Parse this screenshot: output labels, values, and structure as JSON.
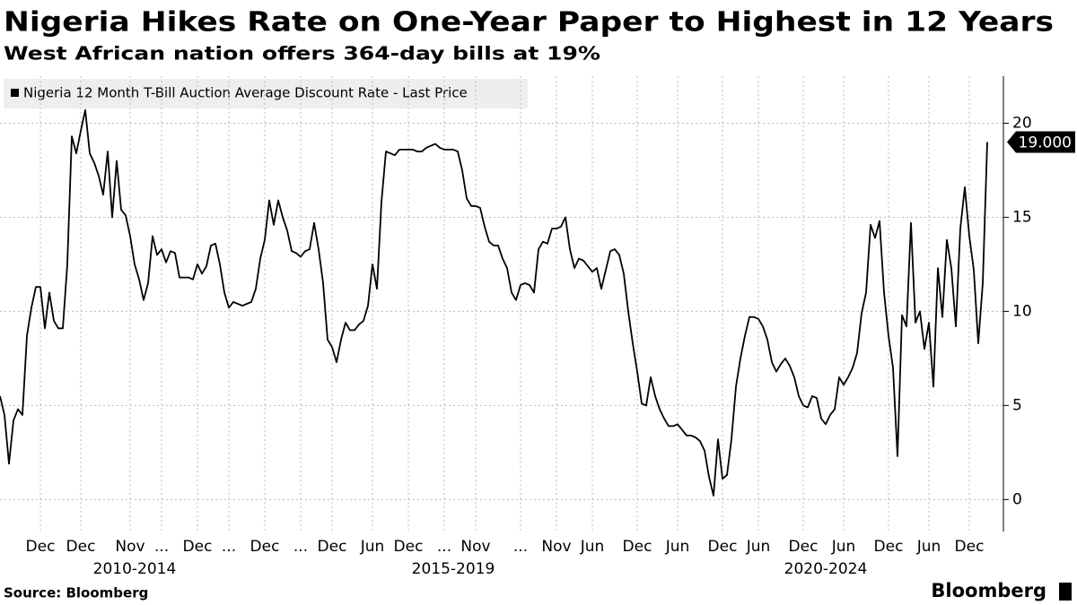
{
  "chart_data": {
    "type": "line",
    "title": "Nigeria Hikes Rate on One-Year Paper to Highest in 12 Years",
    "subtitle": "West African nation offers 364-day bills at 19%",
    "source": "Source: Bloomberg",
    "brand": "Bloomberg",
    "series": [
      {
        "name": "Nigeria 12 Month T-Bill Auction Average Discount Rate - Last Price",
        "color": "#000000",
        "values": [
          5.5,
          4.5,
          1.9,
          4.2,
          4.8,
          4.5,
          8.7,
          10.2,
          11.3,
          11.3,
          9.1,
          11,
          9.5,
          9.1,
          9.1,
          12.5,
          19.3,
          18.4,
          19.6,
          20.7,
          18.4,
          17.9,
          17.2,
          16.2,
          18.5,
          15,
          18,
          15.4,
          15.1,
          14,
          12.5,
          11.7,
          10.6,
          11.5,
          14,
          13,
          13.3,
          12.6,
          13.2,
          13.1,
          11.8,
          11.8,
          11.8,
          11.7,
          12.5,
          12,
          12.4,
          13.5,
          13.6,
          12.5,
          11,
          10.2,
          10.5,
          10.4,
          10.3,
          10.4,
          10.5,
          11.2,
          12.8,
          13.8,
          15.9,
          14.6,
          15.9,
          15,
          14.3,
          13.2,
          13.1,
          12.9,
          13.2,
          13.3,
          14.7,
          13.3,
          11.5,
          8.5,
          8.1,
          7.3,
          8.5,
          9.4,
          9,
          9,
          9.3,
          9.5,
          10.3,
          12.5,
          11.2,
          15.8,
          18.5,
          18.4,
          18.3,
          18.6,
          18.6,
          18.6,
          18.6,
          18.5,
          18.5,
          18.7,
          18.8,
          18.9,
          18.7,
          18.6,
          18.6,
          18.6,
          18.5,
          17.5,
          16,
          15.6,
          15.6,
          15.5,
          14.5,
          13.7,
          13.5,
          13.5,
          12.8,
          12.3,
          11,
          10.6,
          11.4,
          11.5,
          11.4,
          11,
          13.3,
          13.7,
          13.6,
          14.4,
          14.4,
          14.5,
          15,
          13.3,
          12.3,
          12.8,
          12.7,
          12.4,
          12.1,
          12.3,
          11.2,
          12.2,
          13.2,
          13.3,
          13,
          12,
          10,
          8.3,
          6.8,
          5.1,
          5,
          6.5,
          5.5,
          4.8,
          4.3,
          3.9,
          3.9,
          4,
          3.7,
          3.4,
          3.4,
          3.3,
          3.1,
          2.6,
          1.2,
          0.2,
          3.2,
          1.1,
          1.3,
          3.2,
          6,
          7.5,
          8.7,
          9.7,
          9.7,
          9.6,
          9.2,
          8.5,
          7.3,
          6.8,
          7.2,
          7.5,
          7.1,
          6.5,
          5.5,
          5,
          4.9,
          5.5,
          5.4,
          4.3,
          4,
          4.5,
          4.8,
          6.5,
          6.1,
          6.5,
          7,
          7.8,
          9.9,
          11,
          14.6,
          13.9,
          14.8,
          11,
          8.7,
          7,
          2.3,
          9.8,
          9.2,
          14.7,
          9.4,
          10,
          8,
          9.4,
          6,
          12.3,
          9.7,
          13.8,
          12.3,
          9.2,
          14.4,
          16.6,
          14,
          12.2,
          8.3,
          11.5,
          19
        ],
        "last_label": "19.000"
      }
    ],
    "ylim": [
      -1.7,
      22.5
    ],
    "yticks": [
      0,
      5,
      10,
      15,
      20
    ],
    "xticks": [
      {
        "value": 9,
        "label": "Dec"
      },
      {
        "value": 18,
        "label": "Dec"
      },
      {
        "value": 29,
        "label": "Nov"
      },
      {
        "value": 36,
        "label": "..."
      },
      {
        "value": 44,
        "label": "Dec"
      },
      {
        "value": 51,
        "label": "..."
      },
      {
        "value": 59,
        "label": "Dec"
      },
      {
        "value": 67,
        "label": "..."
      },
      {
        "value": 74,
        "label": "Dec"
      },
      {
        "value": 83,
        "label": "Jun"
      },
      {
        "value": 91,
        "label": "Dec"
      },
      {
        "value": 99,
        "label": "..."
      },
      {
        "value": 106,
        "label": "Nov"
      },
      {
        "value": 116,
        "label": "..."
      },
      {
        "value": 124,
        "label": "Nov"
      },
      {
        "value": 132,
        "label": "Jun"
      },
      {
        "value": 142,
        "label": "Dec"
      },
      {
        "value": 151,
        "label": "Jun"
      },
      {
        "value": 161,
        "label": "Dec"
      },
      {
        "value": 169,
        "label": "Jun"
      },
      {
        "value": 179,
        "label": "Dec"
      },
      {
        "value": 188,
        "label": "Jun"
      },
      {
        "value": 198,
        "label": "Dec"
      },
      {
        "value": 207,
        "label": "Jun"
      },
      {
        "value": 216,
        "label": "Dec"
      }
    ],
    "xgroups": [
      {
        "value": 30,
        "label": "2010-2014"
      },
      {
        "value": 101,
        "label": "2015-2019"
      },
      {
        "value": 184,
        "label": "2020-2024"
      }
    ],
    "grid": true
  }
}
